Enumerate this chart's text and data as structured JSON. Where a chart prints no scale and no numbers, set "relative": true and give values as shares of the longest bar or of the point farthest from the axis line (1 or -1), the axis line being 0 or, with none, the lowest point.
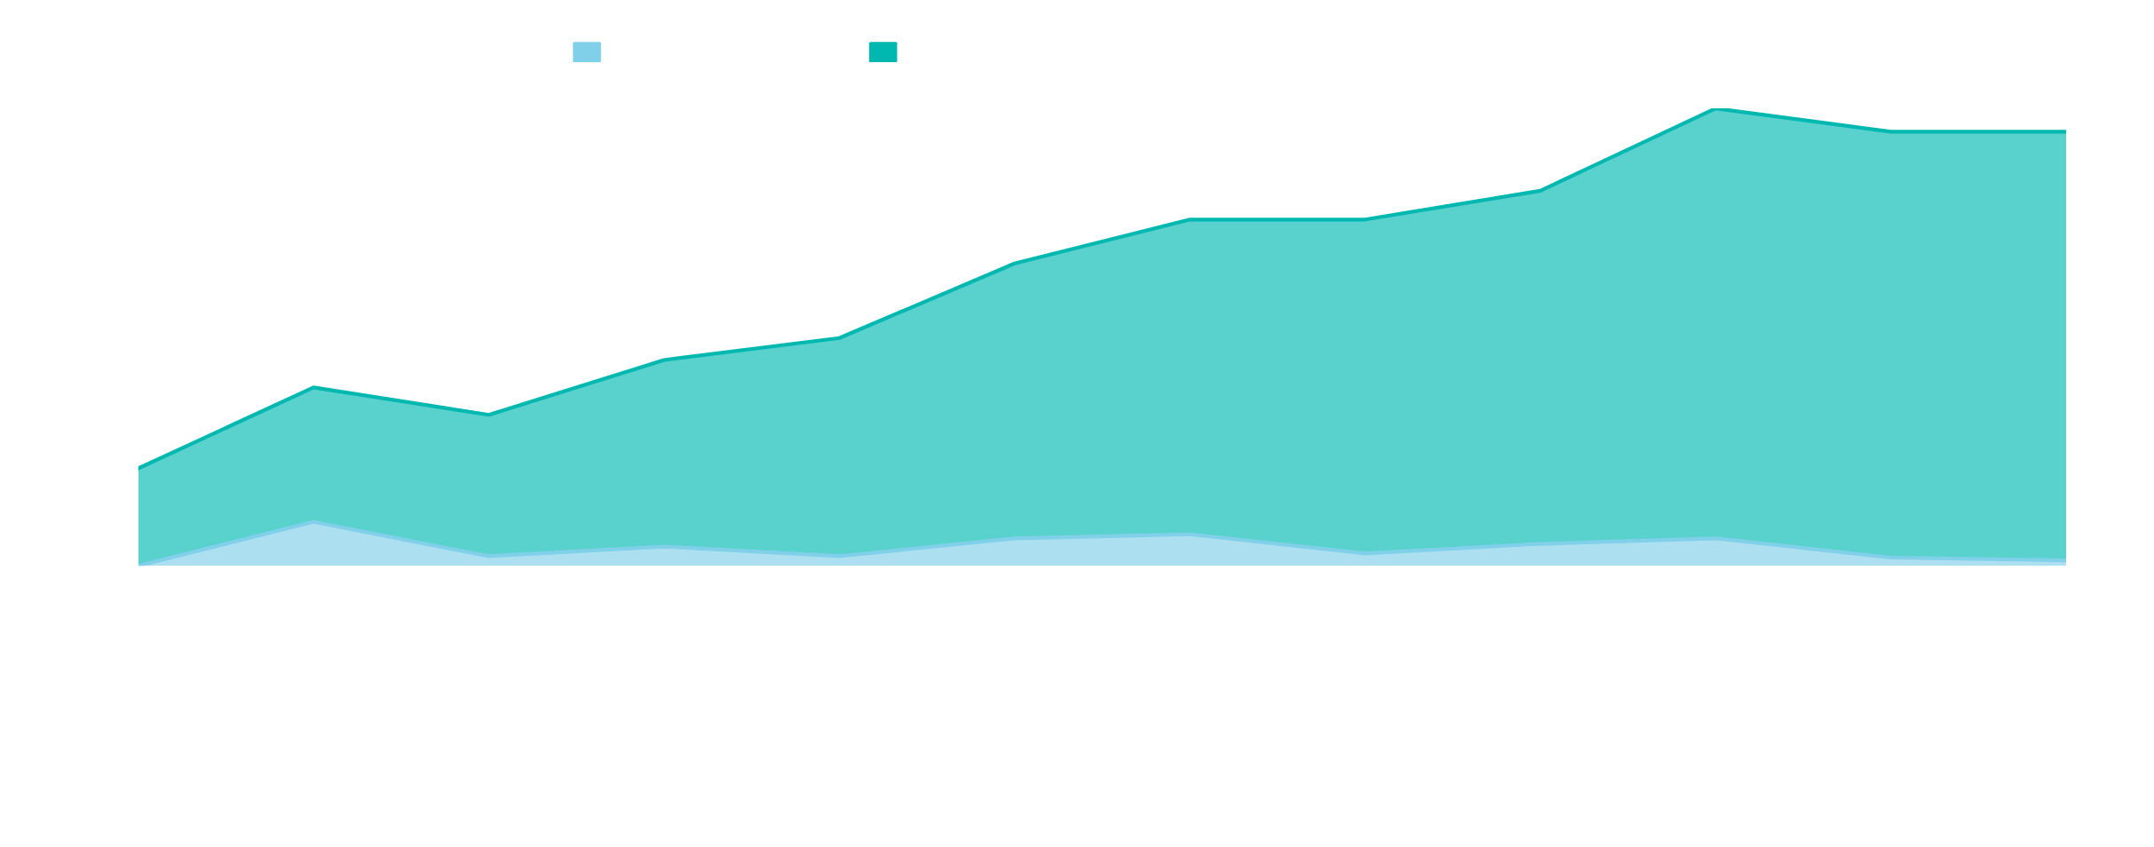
{
  "chart_data": {
    "type": "area",
    "relative": true,
    "grid": false,
    "categories": [
      null,
      null,
      null,
      null,
      null,
      null,
      null,
      null,
      null,
      null,
      null,
      null
    ],
    "series": [
      {
        "color": "#80d0ea",
        "values": [
          0,
          0.096,
          0.021,
          0.042,
          0.021,
          0.06,
          0.069,
          0.027,
          0.048,
          0.06,
          0.018,
          0.012
        ]
      },
      {
        "color": "#00b8b0",
        "values": [
          0.213,
          0.39,
          0.33,
          0.45,
          0.498,
          0.661,
          0.757,
          0.757,
          0.82,
          1.0,
          0.949,
          0.949
        ]
      }
    ]
  }
}
